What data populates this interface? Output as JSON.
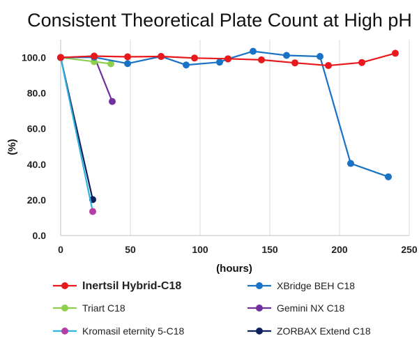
{
  "chart_data": {
    "type": "line",
    "title": "Consistent Theoretical Plate Count at High pH",
    "xlabel": "(hours)",
    "ylabel": "(%)",
    "xlim": [
      0,
      250
    ],
    "ylim": [
      0,
      110
    ],
    "x_ticks": [
      "0",
      "50",
      "100",
      "150",
      "200",
      "250"
    ],
    "y_ticks": [
      "0.0",
      "20.0",
      "40.0",
      "60.0",
      "80.0",
      "100.0"
    ],
    "grid": "vertical",
    "legend_position": "bottom",
    "series": [
      {
        "name": "Inertsil Hybrid-C18",
        "color": "#e8191c",
        "emphasis": true,
        "points": [
          [
            0,
            100
          ],
          [
            24,
            100.8
          ],
          [
            48,
            100.4
          ],
          [
            72,
            100.6
          ],
          [
            96,
            99.7
          ],
          [
            120,
            99.3
          ],
          [
            144,
            98.7
          ],
          [
            168,
            97.0
          ],
          [
            192,
            95.5
          ],
          [
            216,
            97.2
          ],
          [
            240,
            102.4
          ]
        ]
      },
      {
        "name": "XBridge BEH C18",
        "color": "#1a72c4",
        "points": [
          [
            0,
            100
          ],
          [
            24,
            100.2
          ],
          [
            48,
            96.6
          ],
          [
            72,
            100.6
          ],
          [
            90,
            95.8
          ],
          [
            114,
            97.4
          ],
          [
            120,
            99.2
          ],
          [
            138,
            103.5
          ],
          [
            162,
            101.2
          ],
          [
            186,
            100.6
          ],
          [
            208,
            40.5
          ],
          [
            235,
            33.0
          ]
        ]
      },
      {
        "name": "Triart C18",
        "color": "#8fcf4e",
        "points": [
          [
            0,
            100
          ],
          [
            24,
            97.7
          ],
          [
            36,
            96.5
          ]
        ]
      },
      {
        "name": "Gemini NX C18",
        "color": "#7030a0",
        "points": [
          [
            0,
            100
          ],
          [
            24,
            100.8
          ],
          [
            37,
            75.3
          ]
        ]
      },
      {
        "name": "Kromasil eternity 5-C18",
        "color": "#2fb4e0",
        "marker_color": "#b43ea6",
        "points": [
          [
            0,
            100
          ],
          [
            23,
            13.5
          ]
        ]
      },
      {
        "name": "ZORBAX Extend C18",
        "color": "#0e1f5e",
        "points": [
          [
            0,
            100
          ],
          [
            23,
            20.2
          ]
        ]
      }
    ]
  }
}
